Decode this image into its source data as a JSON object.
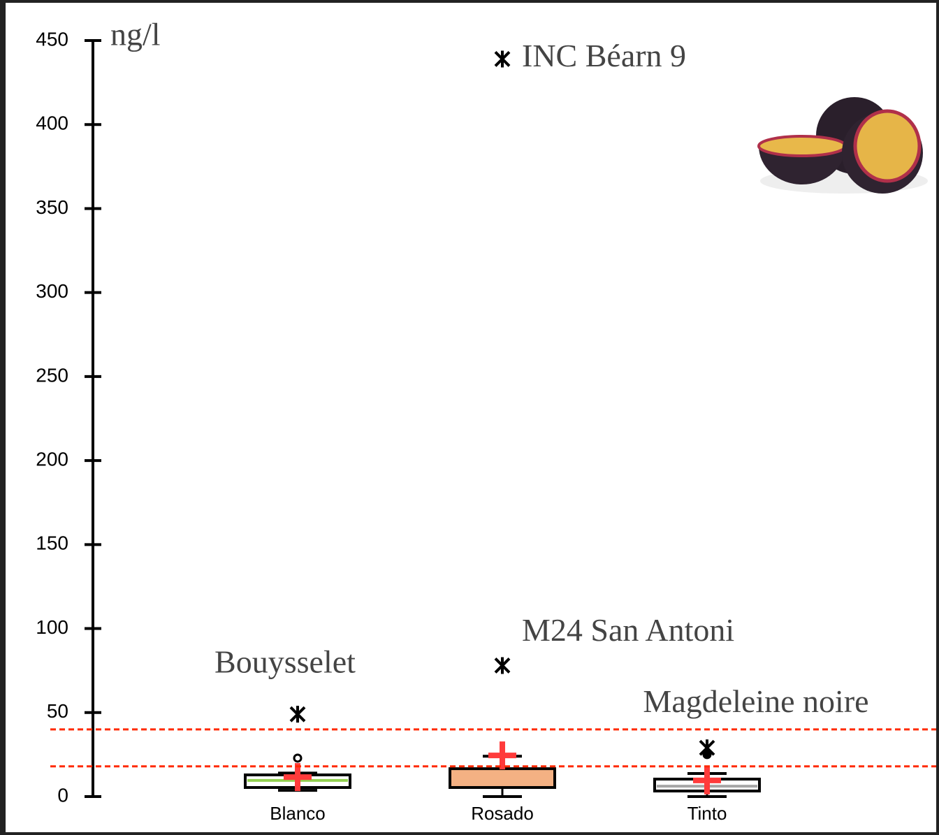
{
  "chart_data": {
    "type": "box",
    "ylabel": "ng/l",
    "categories": [
      "Blanco",
      "Rosado",
      "Tinto"
    ],
    "ylim": [
      0,
      450
    ],
    "yticks": [
      0,
      50,
      100,
      150,
      200,
      250,
      300,
      350,
      400,
      450
    ],
    "boxes": [
      {
        "whisker_low": 3.7,
        "q1": 5.4,
        "median": 9.6,
        "q3": 12.9,
        "whisker_high": 14,
        "mean": 11.6,
        "outliers": [
          22.9
        ],
        "color": "#ffffff",
        "median_color": "#92d050"
      },
      {
        "whisker_low": 0,
        "q1": 5.4,
        "median": 8.3,
        "q3": 16.6,
        "whisker_high": 24,
        "mean": 24.5,
        "outliers": [],
        "color": "#f4b183",
        "median_color": "#f4b183"
      },
      {
        "whisker_low": 0,
        "q1": 3.3,
        "median": 6.2,
        "q3": 10.4,
        "whisker_high": 13.7,
        "mean": 9.6,
        "outliers": [
          25
        ],
        "color": "#ffffff",
        "median_color": "#a6a6a6"
      }
    ],
    "extremes": [
      {
        "category": 0,
        "value": 49,
        "label": "Bouysselet"
      },
      {
        "category": 1,
        "value": 78,
        "label": "M24 San Antoni"
      },
      {
        "category": 1,
        "value": 439,
        "label": "INC Béarn 9"
      },
      {
        "category": 2,
        "value": 29,
        "label": "Magdeleine noire"
      }
    ],
    "mean_color": "#ff3b3b",
    "reference_lines": [
      40,
      18
    ],
    "reference_color": "#ff2a00"
  }
}
